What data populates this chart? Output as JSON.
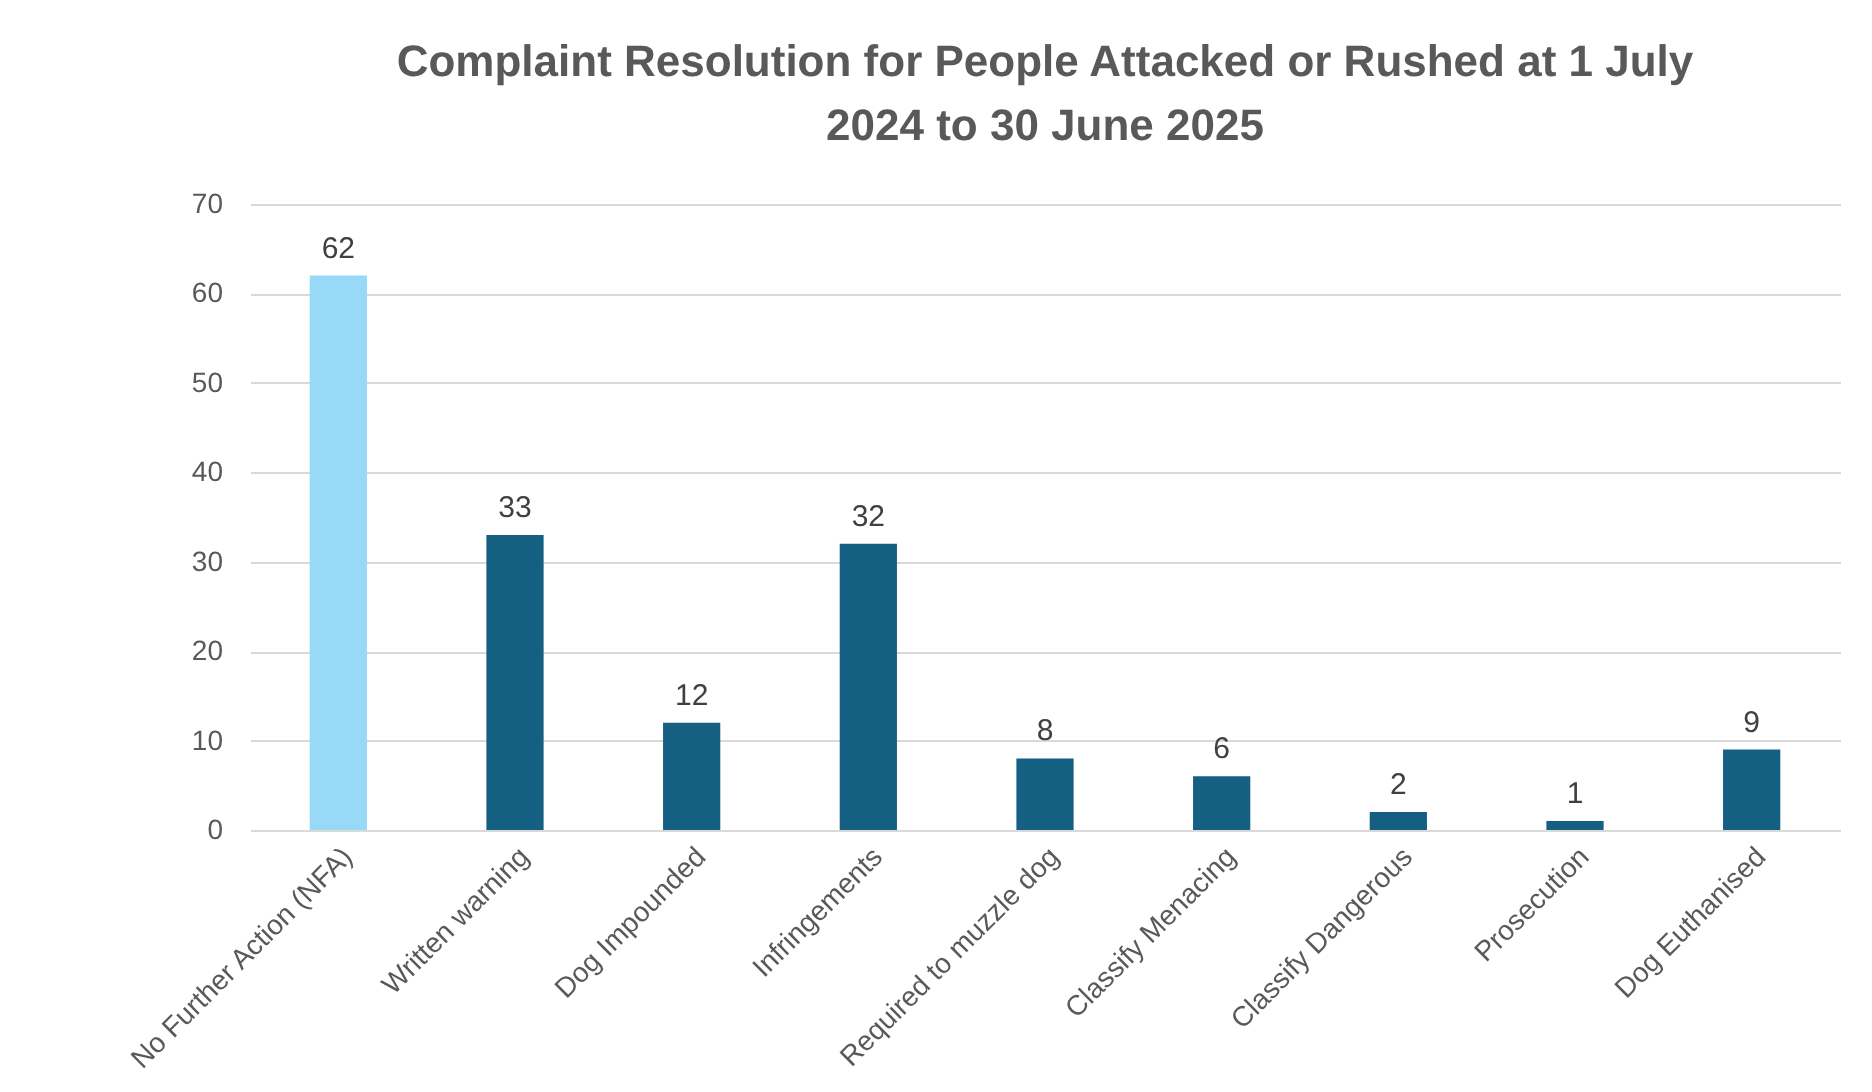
{
  "chart_data": {
    "type": "bar",
    "title": "Complaint Resolution for People Attacked or Rushed at 1 July 2024 to 30 June 2025",
    "categories": [
      "No Further Action (NFA)",
      "Written warning",
      "Dog Impounded",
      "Infringements",
      "Required to muzzle dog",
      "Classify Menacing",
      "Classify Dangerous",
      "Prosecution",
      "Dog Euthanised"
    ],
    "values": [
      62,
      33,
      12,
      32,
      8,
      6,
      2,
      1,
      9
    ],
    "colors": [
      "#97d9f7",
      "#156082",
      "#156082",
      "#156082",
      "#156082",
      "#156082",
      "#156082",
      "#156082",
      "#156082"
    ],
    "ylim": [
      0,
      70
    ],
    "yticks": [
      0,
      10,
      20,
      30,
      40,
      50,
      60,
      70
    ],
    "grid": "y",
    "data_labels": true
  }
}
